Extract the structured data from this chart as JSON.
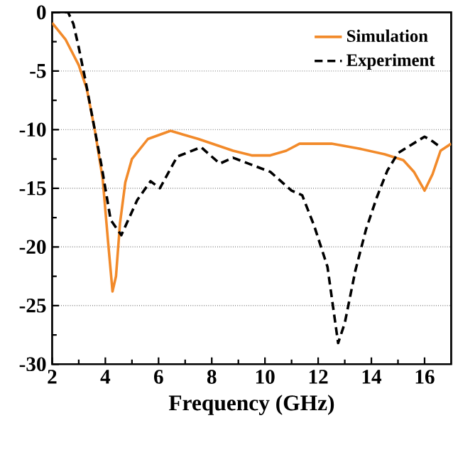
{
  "chart_data": {
    "type": "line",
    "xlabel": "Frequency (GHz)",
    "xlim": [
      2,
      17
    ],
    "xticks": [
      2,
      4,
      6,
      8,
      10,
      12,
      14,
      16
    ],
    "ylim": [
      -30,
      0
    ],
    "yticks": [
      -30,
      -25,
      -20,
      -15,
      -10,
      -5,
      0
    ],
    "grid": "y",
    "legend": "top right",
    "series": [
      {
        "name": "Simulation",
        "color": "#f28a2a",
        "line_style": "solid",
        "x": [
          2,
          2.5,
          3,
          3.3,
          3.6,
          3.9,
          4.1,
          4.27,
          4.4,
          4.55,
          4.75,
          5.0,
          5.6,
          6.45,
          7.5,
          8.8,
          9.5,
          10.2,
          10.8,
          11.3,
          12.5,
          13.5,
          14.5,
          15.2,
          15.6,
          16.0,
          16.3,
          16.6,
          17
        ],
        "values": [
          -0.9,
          -2.3,
          -4.5,
          -6.5,
          -10,
          -14.2,
          -19.5,
          -23.8,
          -22.5,
          -18,
          -14.5,
          -12.5,
          -10.8,
          -10.1,
          -10.8,
          -11.8,
          -12.2,
          -12.2,
          -11.8,
          -11.2,
          -11.2,
          -11.6,
          -12.1,
          -12.6,
          -13.6,
          -15.2,
          -13.8,
          -11.8,
          -11.2
        ]
      },
      {
        "name": "Experiment",
        "color": "#000000",
        "line_style": "dashed",
        "x": [
          2,
          2.6,
          2.8,
          3.0,
          3.26,
          3.85,
          4.2,
          4.6,
          5.2,
          5.7,
          6.05,
          6.7,
          7.6,
          8.3,
          8.8,
          9.5,
          10.2,
          11.0,
          11.4,
          11.85,
          12.35,
          12.75,
          13.0,
          13.4,
          13.8,
          14.2,
          14.6,
          15.0,
          15.5,
          16.0,
          16.3,
          16.6
        ],
        "values": [
          0,
          0,
          -1,
          -3,
          -5.9,
          -13,
          -17.7,
          -19,
          -16,
          -14.4,
          -15,
          -12.3,
          -11.5,
          -12.9,
          -12.4,
          -13,
          -13.6,
          -15.2,
          -15.6,
          -18.2,
          -21.7,
          -28.2,
          -26.5,
          -22,
          -18.5,
          -15.8,
          -13.5,
          -12,
          -11.3,
          -10.6,
          -11,
          -11.5
        ]
      }
    ]
  }
}
